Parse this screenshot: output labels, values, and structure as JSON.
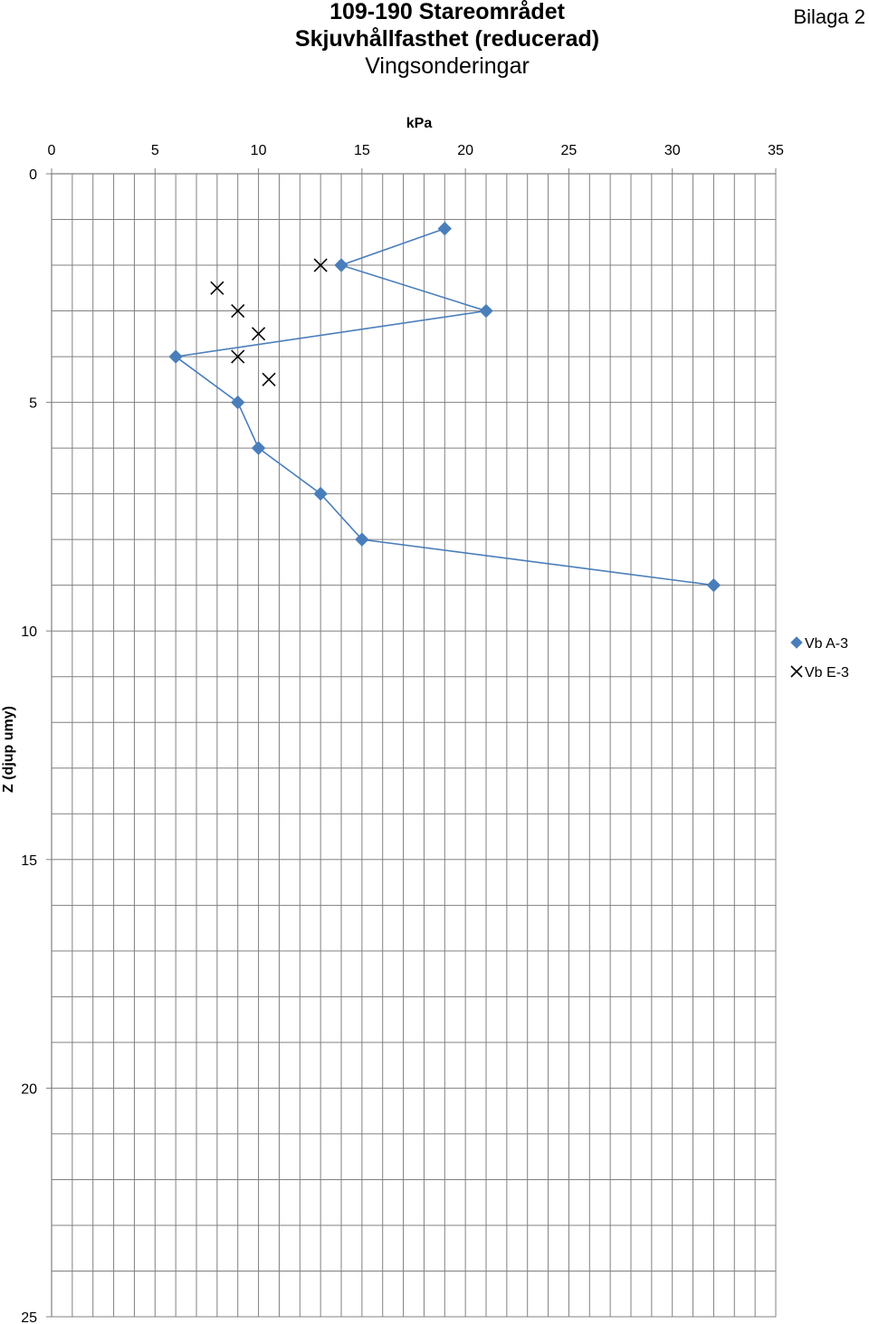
{
  "header": {
    "title_line1": "109-190 Stareområdet",
    "title_line2": "Skjuvhållfasthet (reducerad)",
    "title_line3": "Vingsonderingar",
    "appendix": "Bilaga 2"
  },
  "colors": {
    "series_a": "#4a7ebb",
    "series_e": "#000000",
    "grid": "#808080"
  },
  "chart_data": {
    "type": "scatter",
    "title": "",
    "xlabel": "kPa",
    "ylabel": "Z (djup umy)",
    "xlim": [
      0,
      35
    ],
    "ylim": [
      0,
      25
    ],
    "y_inverted": true,
    "x_axis_position": "top",
    "x_ticks": [
      0,
      5,
      10,
      15,
      20,
      25,
      30,
      35
    ],
    "y_ticks": [
      0,
      5,
      10,
      15,
      20,
      25
    ],
    "x_minor_step": 1,
    "y_minor_step": 1,
    "grid": true,
    "legend_position": "right",
    "series": [
      {
        "name": "Vb A-3",
        "marker": "diamond",
        "connected": true,
        "x": [
          19,
          14,
          21,
          6,
          9,
          10,
          13,
          15,
          32
        ],
        "y": [
          1.2,
          2,
          3,
          4,
          5,
          6,
          7,
          8,
          9
        ]
      },
      {
        "name": "Vb E-3",
        "marker": "x",
        "connected": false,
        "x": [
          13,
          8,
          9,
          10,
          9,
          10.5
        ],
        "y": [
          2,
          2.5,
          3,
          3.5,
          4,
          4.5
        ]
      }
    ]
  }
}
